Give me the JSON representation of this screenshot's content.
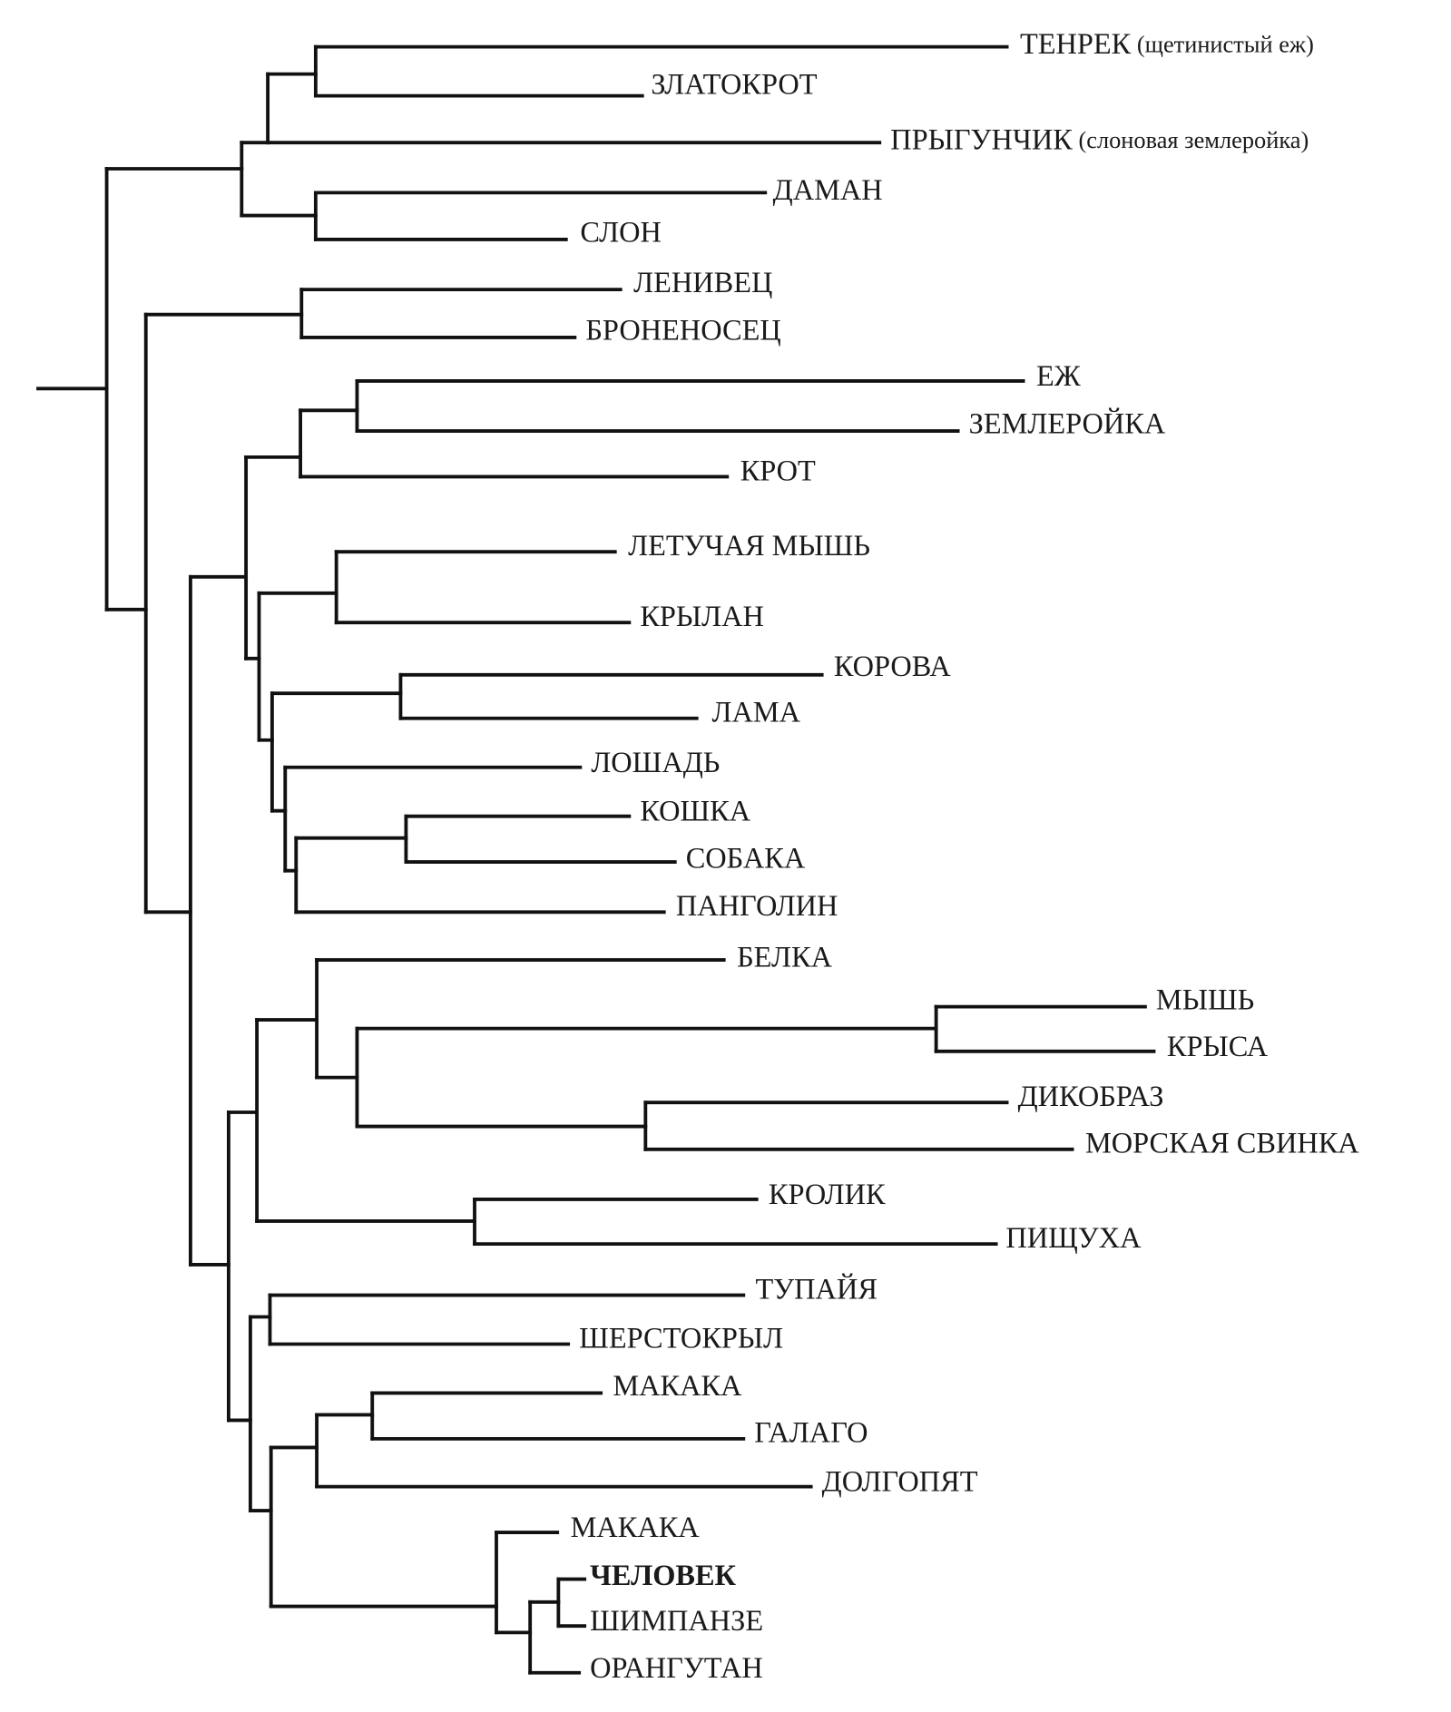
{
  "diagram": {
    "type": "phylogenetic-tree",
    "line_color": "#111111",
    "leaves": [
      {
        "label": "ТЕНРЕК",
        "note": "(щетинистый еж)"
      },
      {
        "label": "ЗЛАТОКРОТ"
      },
      {
        "label": "ПРЫГУНЧИК",
        "note": "(слоновая землеройка)"
      },
      {
        "label": "ДАМАН"
      },
      {
        "label": "СЛОН"
      },
      {
        "label": "ЛЕНИВЕЦ"
      },
      {
        "label": "БРОНЕНОСЕЦ"
      },
      {
        "label": "ЕЖ"
      },
      {
        "label": "ЗЕМЛЕРОЙКА"
      },
      {
        "label": "КРОТ"
      },
      {
        "label": "ЛЕТУЧАЯ МЫШЬ"
      },
      {
        "label": "КРЫЛАН"
      },
      {
        "label": "КОРОВА"
      },
      {
        "label": "ЛАМА"
      },
      {
        "label": "ЛОШАДЬ"
      },
      {
        "label": "КОШКА"
      },
      {
        "label": "СОБАКА"
      },
      {
        "label": "ПАНГОЛИН"
      },
      {
        "label": "БЕЛКА"
      },
      {
        "label": "МЫШЬ"
      },
      {
        "label": "КРЫСА"
      },
      {
        "label": "ДИКОБРАЗ"
      },
      {
        "label": "МОРСКАЯ СВИНКА"
      },
      {
        "label": "КРОЛИК"
      },
      {
        "label": "ПИЩУХА"
      },
      {
        "label": "ТУПАЙЯ"
      },
      {
        "label": "ШЕРСТОКРЫЛ"
      },
      {
        "label": "МАКАКА"
      },
      {
        "label": "ГАЛАГО"
      },
      {
        "label": "ДОЛГОПЯТ"
      },
      {
        "label": "МАКАКА"
      },
      {
        "label": "ЧЕЛОВЕК",
        "emphasis": "bold"
      },
      {
        "label": "ШИМПАНЗЕ"
      },
      {
        "label": "ОРАНГУТАН"
      }
    ]
  }
}
